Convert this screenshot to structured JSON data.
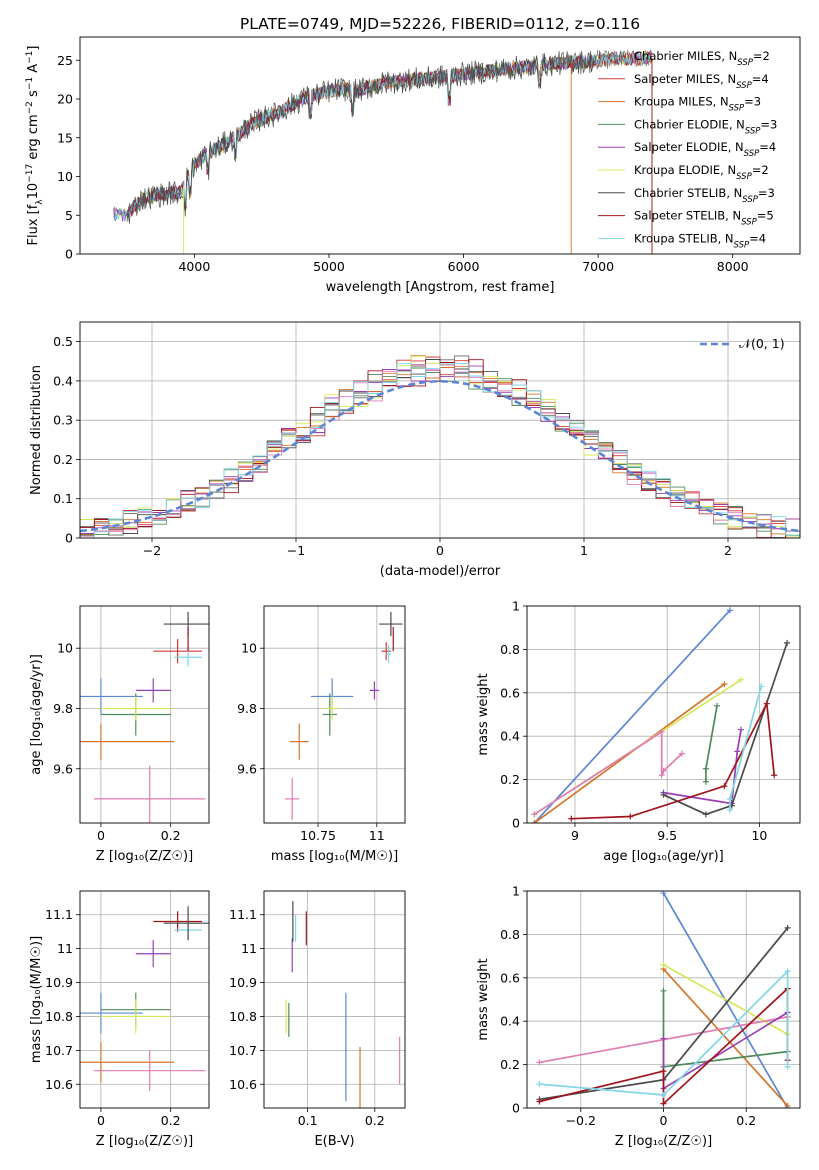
{
  "figure": {
    "title": "PLATE=0749, MJD=52226, FIBERID=0112, z=0.116"
  },
  "palette": {
    "chabrier_miles": "#6a6a6a",
    "salpeter_miles": "#d23a3a",
    "kroupa_miles": "#d4752a",
    "chabrier_elodie": "#4f8a5b",
    "salpeter_elodie": "#9b3fb5",
    "kroupa_elodie": "#d6e85a",
    "chabrier_stelib": "#4a4a4a",
    "salpeter_stelib": "#a0151c",
    "kroupa_stelib": "#7fd6e6",
    "blue": "#5b86d6",
    "pink": "#e07cb2"
  },
  "chart_data": [
    {
      "id": "spectrum",
      "type": "line",
      "xlabel": "wavelength [Angstrom, rest frame]",
      "ylabel_parts": [
        "Flux [f",
        "λ",
        "10",
        "−17",
        " erg cm",
        "−2",
        " s",
        "−1",
        " A",
        "−1",
        "]"
      ],
      "xlim": [
        3150,
        8500
      ],
      "ylim": [
        0,
        28
      ],
      "xticks": [
        4000,
        5000,
        6000,
        7000,
        8000
      ],
      "yticks": [
        0,
        5,
        10,
        15,
        20,
        25
      ],
      "legend_position": "top-right",
      "legend": [
        {
          "base": "Chabrier MILES, N",
          "sub": "SSP",
          "tail": "=2",
          "color_key": "chabrier_miles"
        },
        {
          "base": "Salpeter MILES, N",
          "sub": "SSP",
          "tail": "=4",
          "color_key": "salpeter_miles"
        },
        {
          "base": "Kroupa MILES, N",
          "sub": "SSP",
          "tail": "=3",
          "color_key": "kroupa_miles"
        },
        {
          "base": "Chabrier ELODIE, N",
          "sub": "SSP",
          "tail": "=3",
          "color_key": "chabrier_elodie"
        },
        {
          "base": "Salpeter ELODIE, N",
          "sub": "SSP",
          "tail": "=4",
          "color_key": "salpeter_elodie"
        },
        {
          "base": "Kroupa ELODIE, N",
          "sub": "SSP",
          "tail": "=2",
          "color_key": "kroupa_elodie"
        },
        {
          "base": "Chabrier STELIB, N",
          "sub": "SSP",
          "tail": "=3",
          "color_key": "chabrier_stelib"
        },
        {
          "base": "Salpeter STELIB, N",
          "sub": "SSP",
          "tail": "=5",
          "color_key": "salpeter_stelib"
        },
        {
          "base": "Kroupa STELIB, N",
          "sub": "SSP",
          "tail": "=4",
          "color_key": "kroupa_stelib"
        }
      ],
      "data_envelope": {
        "x": [
          3400,
          3500,
          3600,
          3700,
          3800,
          3900,
          3950,
          4000,
          4100,
          4200,
          4300,
          4400,
          4500,
          4600,
          4700,
          4800,
          4900,
          5000,
          5100,
          5200,
          5300,
          5400,
          5500,
          5600,
          5700,
          5800,
          5900,
          6000,
          6100,
          6200,
          6300,
          6400,
          6500,
          6600,
          6700,
          6800,
          6900,
          7000,
          7100,
          7200,
          7300,
          7400
        ],
        "y": [
          5.2,
          5.0,
          7.0,
          7.5,
          7.8,
          8.0,
          10.0,
          11.5,
          13.0,
          14.0,
          15.0,
          16.5,
          17.5,
          18.0,
          19.0,
          20.0,
          20.5,
          21.0,
          21.3,
          21.0,
          21.5,
          22.0,
          22.2,
          22.5,
          22.6,
          22.8,
          23.0,
          23.2,
          23.4,
          23.6,
          23.8,
          24.0,
          24.2,
          24.4,
          24.6,
          24.7,
          24.8,
          25.0,
          25.1,
          25.2,
          25.2,
          25.3
        ]
      }
    },
    {
      "id": "residuals",
      "type": "histogram",
      "xlabel": "(data-model)/error",
      "ylabel": "Normed distribution",
      "xlim": [
        -2.5,
        2.5
      ],
      "ylim": [
        0,
        0.55
      ],
      "xticks": [
        -2,
        -1,
        0,
        1,
        2
      ],
      "yticks": [
        0.0,
        0.1,
        0.2,
        0.3,
        0.4,
        0.5
      ],
      "grid": true,
      "legend_position": "top-right",
      "reference_curve": {
        "label": "𝒩(0, 1)",
        "mean": 0,
        "sigma": 1,
        "color_key": "blue",
        "style": "dashed"
      }
    },
    {
      "id": "age_vs_Z",
      "type": "errorbar",
      "xlabel": "Z [log₁₀(Z/Z☉)]",
      "ylabel": "age  [log₁₀(age/yr)]",
      "xlim": [
        -0.06,
        0.31
      ],
      "ylim": [
        9.42,
        10.14
      ],
      "xticks": [
        0.0,
        0.2
      ],
      "yticks": [
        9.6,
        9.8,
        10.0
      ],
      "grid": true,
      "points": [
        {
          "x": 0.0,
          "y": 9.84,
          "xerr": 0.12,
          "yerr": 0.06,
          "color_key": "blue"
        },
        {
          "x": 0.0,
          "y": 9.69,
          "xerr": 0.21,
          "yerr": 0.06,
          "color_key": "kroupa_miles"
        },
        {
          "x": 0.14,
          "y": 9.5,
          "xerr": 0.16,
          "yerr": 0.11,
          "color_key": "pink"
        },
        {
          "x": 0.1,
          "y": 9.78,
          "xerr": 0.1,
          "yerr": 0.07,
          "color_key": "chabrier_elodie"
        },
        {
          "x": 0.1,
          "y": 9.8,
          "xerr": 0.1,
          "yerr": 0.04,
          "color_key": "kroupa_elodie"
        },
        {
          "x": 0.15,
          "y": 9.86,
          "xerr": 0.05,
          "yerr": 0.04,
          "color_key": "salpeter_elodie"
        },
        {
          "x": 0.22,
          "y": 9.99,
          "xerr": 0.07,
          "yerr": 0.04,
          "color_key": "salpeter_miles"
        },
        {
          "x": 0.25,
          "y": 9.97,
          "xerr": 0.04,
          "yerr": 0.03,
          "color_key": "kroupa_stelib"
        },
        {
          "x": 0.25,
          "y": 10.08,
          "xerr": 0.07,
          "yerr": 0.04,
          "color_key": "chabrier_stelib"
        },
        {
          "x": 0.25,
          "y": 10.03,
          "xerr": 0.0,
          "yerr": 0.04,
          "color_key": "salpeter_stelib"
        }
      ]
    },
    {
      "id": "age_vs_mass",
      "type": "errorbar",
      "xlabel": "mass [log₁₀(M/M☉)]",
      "ylabel": "",
      "xlim": [
        10.52,
        11.12
      ],
      "ylim": [
        9.42,
        10.14
      ],
      "xticks": [
        10.75,
        11.0
      ],
      "yticks": [
        9.6,
        9.8,
        10.0
      ],
      "grid": true,
      "points": [
        {
          "x": 10.81,
          "y": 9.84,
          "xerr": 0.09,
          "yerr": 0.06,
          "color_key": "blue"
        },
        {
          "x": 10.67,
          "y": 9.69,
          "xerr": 0.04,
          "yerr": 0.06,
          "color_key": "kroupa_miles"
        },
        {
          "x": 10.64,
          "y": 9.5,
          "xerr": 0.03,
          "yerr": 0.07,
          "color_key": "pink"
        },
        {
          "x": 10.8,
          "y": 9.78,
          "xerr": 0.03,
          "yerr": 0.07,
          "color_key": "chabrier_elodie"
        },
        {
          "x": 10.81,
          "y": 9.8,
          "xerr": 0.03,
          "yerr": 0.04,
          "color_key": "kroupa_elodie"
        },
        {
          "x": 10.99,
          "y": 9.86,
          "xerr": 0.02,
          "yerr": 0.03,
          "color_key": "salpeter_elodie"
        },
        {
          "x": 11.04,
          "y": 9.99,
          "xerr": 0.02,
          "yerr": 0.03,
          "color_key": "salpeter_miles"
        },
        {
          "x": 11.05,
          "y": 9.98,
          "xerr": 0.01,
          "yerr": 0.03,
          "color_key": "kroupa_stelib"
        },
        {
          "x": 11.06,
          "y": 10.08,
          "xerr": 0.05,
          "yerr": 0.04,
          "color_key": "chabrier_stelib"
        },
        {
          "x": 11.07,
          "y": 10.03,
          "xerr": 0.0,
          "yerr": 0.04,
          "color_key": "salpeter_stelib"
        }
      ]
    },
    {
      "id": "weight_vs_age",
      "type": "line",
      "xlabel": "age  [log₁₀(age/yr)]",
      "ylabel": "mass weight",
      "xlim": [
        8.74,
        10.22
      ],
      "ylim": [
        0,
        1.0
      ],
      "xticks": [
        9.0,
        9.5,
        10.0
      ],
      "yticks": [
        0.0,
        0.2,
        0.4,
        0.6,
        0.8,
        1.0
      ],
      "grid": true,
      "series": [
        {
          "color_key": "blue",
          "x": [
            8.78,
            9.84
          ],
          "y": [
            0.0,
            0.98
          ]
        },
        {
          "color_key": "kroupa_miles",
          "x": [
            8.78,
            9.81
          ],
          "y": [
            0.0,
            0.64
          ]
        },
        {
          "color_key": "kroupa_elodie",
          "x": [
            8.78,
            9.9
          ],
          "y": [
            0.04,
            0.66
          ]
        },
        {
          "color_key": "pink",
          "x": [
            8.78,
            9.47,
            9.47,
            9.48,
            9.58
          ],
          "y": [
            0.04,
            0.42,
            0.22,
            0.24,
            0.32
          ]
        },
        {
          "color_key": "chabrier_elodie",
          "x": [
            9.71,
            9.71,
            9.77
          ],
          "y": [
            0.19,
            0.25,
            0.54
          ]
        },
        {
          "color_key": "salpeter_elodie",
          "x": [
            9.48,
            9.85,
            9.88,
            9.9
          ],
          "y": [
            0.14,
            0.09,
            0.33,
            0.43
          ]
        },
        {
          "color_key": "chabrier_stelib",
          "x": [
            9.48,
            9.71,
            9.85,
            10.15
          ],
          "y": [
            0.13,
            0.04,
            0.08,
            0.83
          ]
        },
        {
          "color_key": "salpeter_stelib",
          "x": [
            8.98,
            9.3,
            9.81,
            10.04,
            10.08
          ],
          "y": [
            0.02,
            0.03,
            0.17,
            0.55,
            0.22
          ]
        },
        {
          "color_key": "kroupa_stelib",
          "x": [
            9.84,
            9.84,
            10.01
          ],
          "y": [
            0.06,
            0.11,
            0.63
          ]
        }
      ]
    },
    {
      "id": "mass_vs_Z",
      "type": "errorbar",
      "xlabel": "Z [log₁₀(Z/Z☉)]",
      "ylabel": "mass [log₁₀(M/M☉)]",
      "xlim": [
        -0.06,
        0.31
      ],
      "ylim": [
        10.53,
        11.17
      ],
      "xticks": [
        0.0,
        0.2
      ],
      "yticks": [
        10.6,
        10.7,
        10.8,
        10.9,
        11.0,
        11.1
      ],
      "grid": true,
      "points": [
        {
          "x": 0.0,
          "y": 10.81,
          "xerr": 0.12,
          "yerr": 0.06,
          "color_key": "blue"
        },
        {
          "x": 0.0,
          "y": 10.665,
          "xerr": 0.21,
          "yerr": 0.06,
          "color_key": "kroupa_miles"
        },
        {
          "x": 0.14,
          "y": 10.64,
          "xerr": 0.16,
          "yerr": 0.06,
          "color_key": "pink"
        },
        {
          "x": 0.1,
          "y": 10.82,
          "xerr": 0.1,
          "yerr": 0.05,
          "color_key": "chabrier_elodie"
        },
        {
          "x": 0.1,
          "y": 10.8,
          "xerr": 0.1,
          "yerr": 0.05,
          "color_key": "kroupa_elodie"
        },
        {
          "x": 0.15,
          "y": 10.985,
          "xerr": 0.05,
          "yerr": 0.04,
          "color_key": "salpeter_elodie"
        },
        {
          "x": 0.22,
          "y": 11.08,
          "xerr": 0.07,
          "yerr": 0.03,
          "color_key": "salpeter_stelib"
        },
        {
          "x": 0.25,
          "y": 11.055,
          "xerr": 0.04,
          "yerr": 0.03,
          "color_key": "kroupa_stelib"
        },
        {
          "x": 0.25,
          "y": 11.075,
          "xerr": 0.07,
          "yerr": 0.05,
          "color_key": "chabrier_stelib"
        }
      ]
    },
    {
      "id": "mass_vs_ebv",
      "type": "errorbar",
      "xlabel": "E(B-V)",
      "ylabel": "",
      "xlim": [
        0.035,
        0.245
      ],
      "ylim": [
        10.53,
        11.17
      ],
      "xticks": [
        0.1,
        0.2
      ],
      "yticks": [
        10.6,
        10.7,
        10.8,
        10.9,
        11.0,
        11.1
      ],
      "grid": true,
      "points": [
        {
          "x": 0.068,
          "y": 10.8,
          "xerr": 0.0,
          "yerr": 0.05,
          "color_key": "kroupa_elodie"
        },
        {
          "x": 0.072,
          "y": 10.79,
          "xerr": 0.0,
          "yerr": 0.05,
          "color_key": "chabrier_elodie"
        },
        {
          "x": 0.077,
          "y": 10.98,
          "xerr": 0.0,
          "yerr": 0.05,
          "color_key": "salpeter_elodie"
        },
        {
          "x": 0.078,
          "y": 11.08,
          "xerr": 0.0,
          "yerr": 0.06,
          "color_key": "chabrier_stelib"
        },
        {
          "x": 0.082,
          "y": 11.06,
          "xerr": 0.0,
          "yerr": 0.04,
          "color_key": "kroupa_stelib"
        },
        {
          "x": 0.098,
          "y": 11.06,
          "xerr": 0.0,
          "yerr": 0.05,
          "color_key": "salpeter_stelib"
        },
        {
          "x": 0.157,
          "y": 10.71,
          "xerr": 0.0,
          "yerr": 0.16,
          "color_key": "blue"
        },
        {
          "x": 0.178,
          "y": 10.6,
          "xerr": 0.0,
          "yerr": 0.11,
          "color_key": "kroupa_miles"
        },
        {
          "x": 0.237,
          "y": 10.67,
          "xerr": 0.0,
          "yerr": 0.07,
          "color_key": "pink"
        }
      ]
    },
    {
      "id": "weight_vs_Z",
      "type": "line",
      "xlabel": "Z [log₁₀(Z/Z☉)]",
      "ylabel": "mass weight",
      "xlim": [
        -0.33,
        0.33
      ],
      "ylim": [
        0,
        1.0
      ],
      "xticks": [
        -0.2,
        0.0,
        0.2
      ],
      "yticks": [
        0.0,
        0.2,
        0.4,
        0.6,
        0.8,
        1.0
      ],
      "grid": true,
      "series": [
        {
          "color_key": "blue",
          "x": [
            0.0,
            0.3
          ],
          "y": [
            0.99,
            0.0
          ]
        },
        {
          "color_key": "kroupa_miles",
          "x": [
            0.0,
            0.3
          ],
          "y": [
            0.64,
            0.01
          ]
        },
        {
          "color_key": "kroupa_elodie",
          "x": [
            0.0,
            0.3
          ],
          "y": [
            0.66,
            0.34
          ]
        },
        {
          "color_key": "pink",
          "x": [
            -0.3,
            0.3
          ],
          "y": [
            0.21,
            0.42
          ]
        },
        {
          "color_key": "chabrier_elodie",
          "x": [
            0.0,
            0.0,
            0.3
          ],
          "y": [
            0.54,
            0.19,
            0.26
          ]
        },
        {
          "color_key": "salpeter_elodie",
          "x": [
            0.0,
            0.0,
            0.3
          ],
          "y": [
            0.32,
            0.09,
            0.44
          ]
        },
        {
          "color_key": "chabrier_stelib",
          "x": [
            -0.3,
            0.0,
            0.3
          ],
          "y": [
            0.04,
            0.13,
            0.83
          ]
        },
        {
          "color_key": "salpeter_stelib",
          "x": [
            -0.3,
            0.0,
            0.0,
            0.3,
            0.3
          ],
          "y": [
            0.03,
            0.17,
            0.02,
            0.55,
            0.22
          ]
        },
        {
          "color_key": "kroupa_stelib",
          "x": [
            -0.3,
            0.0,
            0.3,
            0.3
          ],
          "y": [
            0.11,
            0.06,
            0.63,
            0.19
          ]
        }
      ]
    }
  ]
}
